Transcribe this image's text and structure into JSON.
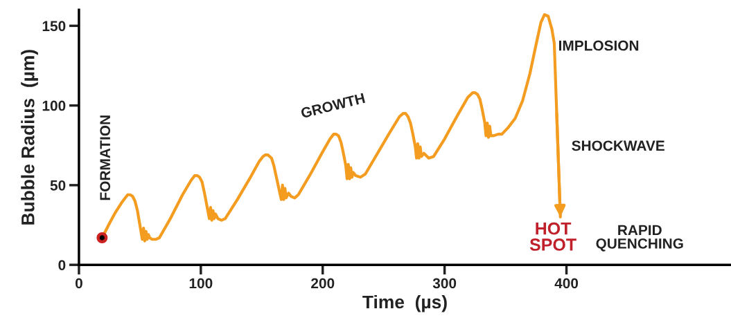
{
  "chart_data": {
    "type": "line",
    "xlabel": "Time  (µs)",
    "ylabel": "Bubble Radius  (µm)",
    "xlim": [
      0,
      535
    ],
    "ylim": [
      0,
      160
    ],
    "xticks": [
      0,
      100,
      200,
      300,
      400
    ],
    "yticks": [
      0,
      50,
      100,
      150
    ],
    "grid": false,
    "line_style": "solid",
    "series": [
      {
        "color": "#f39c1f",
        "marker": "none",
        "x": [
          19,
          25,
          30,
          35,
          38,
          40,
          42,
          44,
          46,
          48,
          50,
          52,
          53,
          54,
          55,
          56,
          57,
          58,
          60,
          63,
          66,
          75,
          85,
          92,
          95,
          97,
          99,
          101,
          103,
          105,
          107,
          108,
          109,
          110,
          111,
          112,
          114,
          117,
          120,
          130,
          140,
          148,
          151,
          153,
          155,
          158,
          160,
          162,
          164,
          166,
          167,
          168,
          169,
          170,
          172,
          174,
          177,
          180,
          190,
          200,
          206,
          209,
          211,
          213,
          215,
          217,
          219,
          220,
          221,
          222,
          223,
          224,
          225,
          227,
          231,
          235,
          245,
          255,
          263,
          266,
          268,
          270,
          272,
          274,
          276,
          277,
          278,
          279,
          280,
          281,
          283,
          287,
          291,
          300,
          310,
          319,
          323,
          325,
          327,
          329,
          331,
          333,
          334,
          335,
          336,
          337,
          338,
          340,
          344,
          347,
          352,
          358,
          364,
          370,
          375,
          379,
          382,
          385,
          388,
          390,
          392,
          395
        ],
        "values": [
          17,
          26,
          33,
          39,
          42,
          44,
          44,
          43,
          40,
          34,
          25,
          16,
          23,
          15,
          21,
          16,
          19,
          17,
          16,
          16,
          17,
          29,
          44,
          53,
          56,
          56,
          55,
          52,
          45,
          37,
          29,
          36,
          28,
          34,
          29,
          32,
          29,
          28,
          29,
          41,
          54,
          65,
          68,
          69,
          69,
          67,
          62,
          55,
          48,
          41,
          50,
          41,
          48,
          42,
          45,
          43,
          42,
          44,
          57,
          71,
          79,
          82,
          82,
          81,
          77,
          70,
          62,
          54,
          63,
          54,
          61,
          55,
          58,
          56,
          55,
          57,
          70,
          83,
          93,
          95,
          95,
          93,
          89,
          82,
          74,
          67,
          76,
          67,
          74,
          68,
          70,
          67,
          68,
          79,
          93,
          105,
          108,
          108,
          107,
          104,
          97,
          89,
          81,
          89,
          80,
          87,
          81,
          81,
          82,
          82,
          86,
          92,
          103,
          120,
          138,
          152,
          157,
          156,
          148,
          139,
          95,
          30
        ]
      },
      {
        "type": "scatter",
        "marker": "circle",
        "color": "#cc2222",
        "x": [
          19
        ],
        "values": [
          17
        ]
      }
    ],
    "annotations": [
      "FORMATION",
      "GROWTH",
      "IMPLOSION",
      {
        "text": "SHOCKWAVE",
        "x": 393,
        "y": 74
      },
      "HOT\nSPOT",
      "RAPID\nQUENCHING"
    ]
  }
}
